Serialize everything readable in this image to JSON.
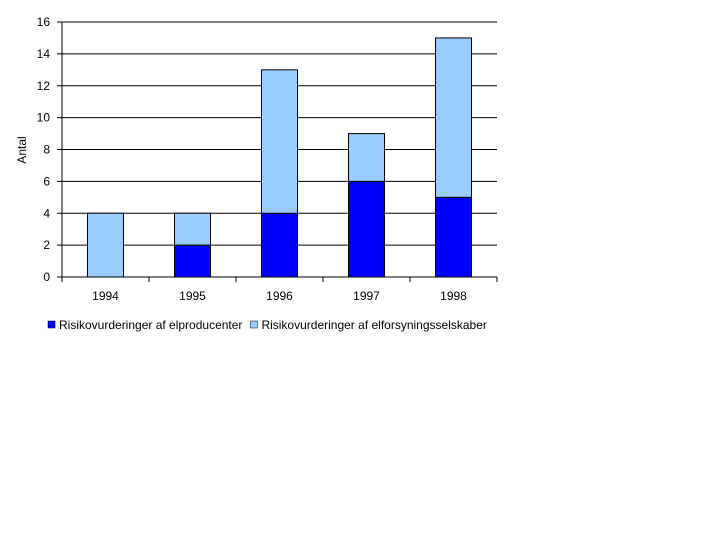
{
  "chart_data": {
    "type": "bar",
    "stacked": true,
    "y_label": "Antal",
    "categories": [
      "1994",
      "1995",
      "1996",
      "1997",
      "1998"
    ],
    "series": [
      {
        "name": "Risikovurderinger af elproducenter",
        "color": "#0000ff",
        "values": [
          0,
          2,
          4,
          6,
          5
        ]
      },
      {
        "name": "Risikovurderinger af elforsyningsselskaber",
        "color": "#99ccff",
        "values": [
          4,
          2,
          9,
          3,
          10
        ]
      }
    ],
    "ylim": [
      0,
      16
    ],
    "yticks": [
      0,
      2,
      4,
      6,
      8,
      10,
      12,
      14,
      16
    ],
    "grid": true,
    "legend": "bottom"
  }
}
